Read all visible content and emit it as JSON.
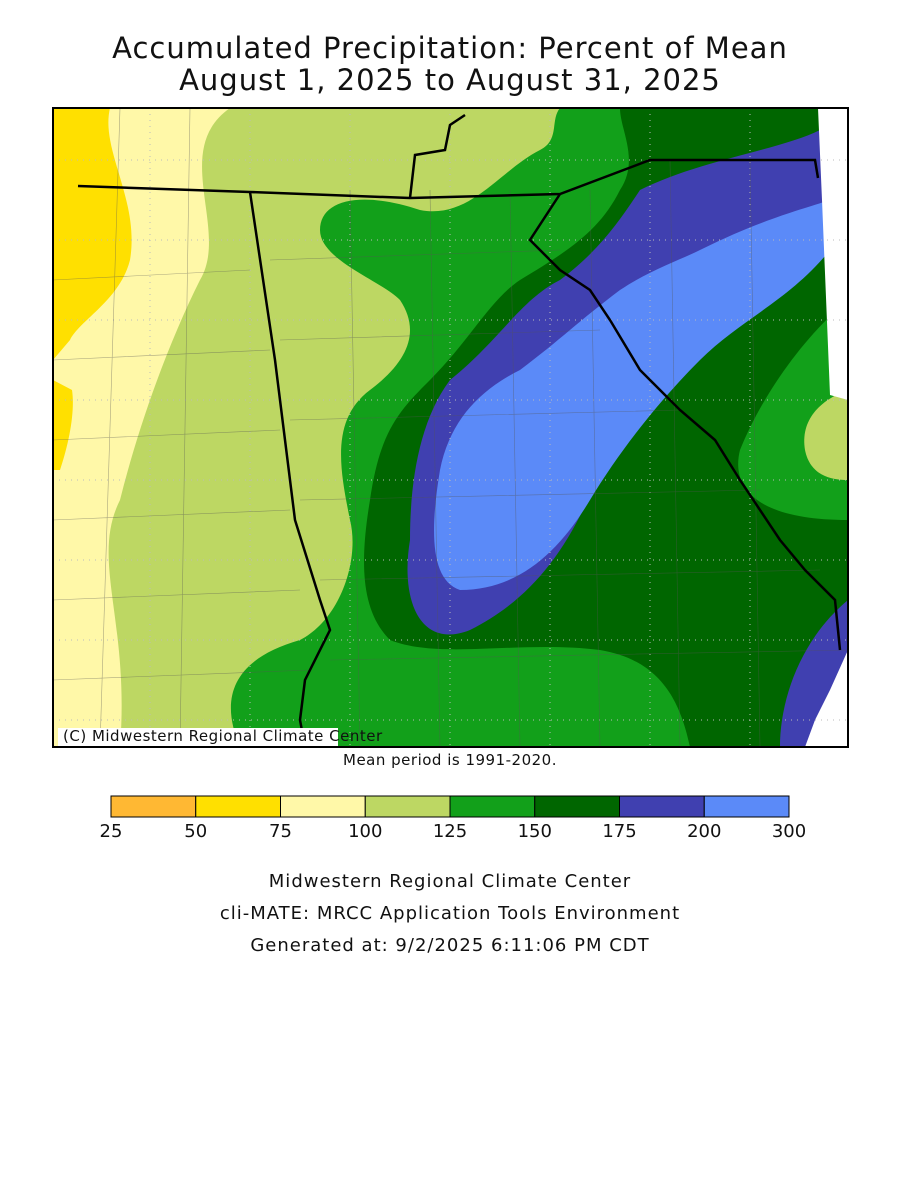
{
  "title": [
    "Accumulated Precipitation: Percent of Mean",
    "August 1, 2025 to August 31, 2025"
  ],
  "map": {
    "credit": "(C) Midwestern Regional Climate Center",
    "note": "Mean period is 1991-2020."
  },
  "legend": {
    "breaks": [
      25,
      50,
      75,
      100,
      125,
      150,
      175,
      200,
      300
    ],
    "colors": [
      "#ffb833",
      "#ffe000",
      "#fff8a8",
      "#bdd763",
      "#12a01a",
      "#006600",
      "#4040b0",
      "#5b8af8"
    ]
  },
  "footer": [
    "Midwestern Regional Climate Center",
    "cli-MATE: MRCC Application Tools Environment",
    "Generated at: 9/2/2025 6:11:06 PM CDT"
  ]
}
